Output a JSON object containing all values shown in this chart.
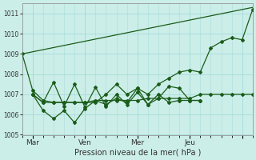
{
  "xlabel": "Pression niveau de la mer( hPa )",
  "background_color": "#cceee8",
  "grid_color": "#aadddd",
  "line_color": "#1a5c1a",
  "ylim": [
    1005,
    1011.5
  ],
  "yticks": [
    1005,
    1006,
    1007,
    1008,
    1009,
    1010,
    1011
  ],
  "xlim": [
    0,
    22
  ],
  "xtick_positions": [
    1,
    6,
    11,
    16,
    21
  ],
  "xtick_labels": [
    "Mar",
    "Ven",
    "Mer",
    "Jeu",
    ""
  ],
  "trend_line": [
    0,
    1009.0,
    22,
    1011.3
  ],
  "line_a_x": [
    0,
    1,
    2,
    3,
    4,
    5,
    6,
    7,
    8,
    9,
    10,
    11,
    12,
    13,
    14,
    15,
    16,
    17,
    18,
    19,
    20,
    21,
    22
  ],
  "line_a_y": [
    1009.0,
    1007.2,
    1006.7,
    1006.6,
    1006.6,
    1006.6,
    1006.6,
    1006.7,
    1006.7,
    1006.7,
    1006.7,
    1006.7,
    1006.8,
    1006.8,
    1006.8,
    1006.8,
    1006.8,
    1007.0,
    1007.0,
    1007.0,
    1007.0,
    1007.0,
    1007.0
  ],
  "line_b_x": [
    1,
    2,
    3,
    4,
    5,
    6,
    7,
    8,
    9,
    10,
    11,
    12,
    13,
    14,
    15,
    16,
    17
  ],
  "line_b_y": [
    1007.0,
    1006.6,
    1007.6,
    1006.4,
    1007.5,
    1006.35,
    1007.35,
    1006.4,
    1007.0,
    1006.5,
    1007.1,
    1006.5,
    1007.0,
    1006.6,
    1006.7,
    1006.7,
    1006.7
  ],
  "line_c_x": [
    1,
    2,
    3,
    4,
    5,
    6,
    7,
    8,
    9,
    10,
    11,
    12,
    13,
    14,
    15,
    16,
    17
  ],
  "line_c_y": [
    1007.0,
    1006.2,
    1005.8,
    1006.2,
    1005.6,
    1006.3,
    1006.7,
    1006.5,
    1006.8,
    1006.6,
    1007.3,
    1006.5,
    1006.8,
    1007.4,
    1007.3,
    1006.7,
    1006.7
  ],
  "line_d_x": [
    1,
    2,
    3,
    4,
    5,
    6,
    7,
    8,
    9,
    10,
    11,
    12,
    13,
    14,
    15,
    16,
    17,
    18,
    19,
    20,
    21,
    22
  ],
  "line_d_y": [
    1007.0,
    1006.6,
    1006.6,
    1006.6,
    1006.6,
    1006.6,
    1006.6,
    1007.0,
    1007.5,
    1007.0,
    1007.3,
    1007.0,
    1007.5,
    1007.8,
    1008.1,
    1008.2,
    1008.1,
    1009.3,
    1009.6,
    1009.8,
    1009.7,
    1011.2
  ],
  "line_width": 0.9,
  "marker_size": 2.0
}
